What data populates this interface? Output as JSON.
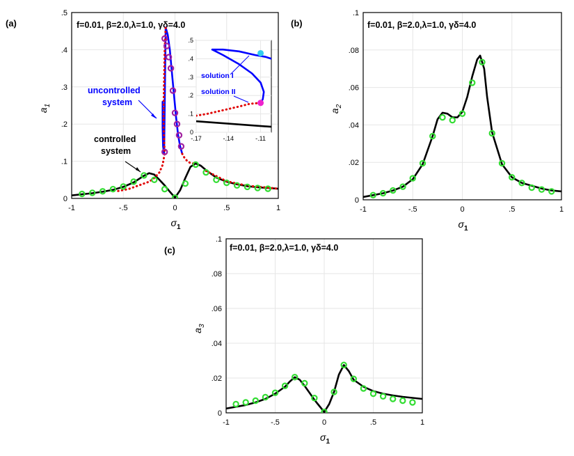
{
  "chart_data": [
    {
      "id": "a",
      "panel_label": "(a)",
      "type": "line",
      "header": "f=0.01, β=2.0,λ=1.0,  γδ=4.0",
      "xlabel": "σ",
      "xlabel_sub": "1",
      "ylabel": "a",
      "ylabel_sub": "1",
      "xlim": [
        -1,
        1
      ],
      "ylim": [
        0,
        0.5
      ],
      "xticks": [
        -1,
        -0.5,
        0,
        0.5,
        1
      ],
      "yticks": [
        0,
        0.1,
        0.2,
        0.3,
        0.4,
        0.5
      ],
      "grid": true,
      "series": [
        {
          "style": "solid",
          "color": "#000000",
          "x": [
            -1,
            -0.9,
            -0.8,
            -0.7,
            -0.6,
            -0.5,
            -0.4,
            -0.3,
            -0.25,
            -0.2,
            -0.15,
            -0.1,
            -0.05,
            0,
            0.05,
            0.1,
            0.15,
            0.2,
            0.25,
            0.3,
            0.4,
            0.5,
            0.6,
            0.7,
            0.8,
            0.9,
            1
          ],
          "y": [
            0.008,
            0.011,
            0.014,
            0.018,
            0.023,
            0.031,
            0.043,
            0.061,
            0.068,
            0.064,
            0.05,
            0.035,
            0.018,
            0.002,
            0.022,
            0.055,
            0.085,
            0.094,
            0.088,
            0.076,
            0.056,
            0.045,
            0.038,
            0.033,
            0.03,
            0.028,
            0.026
          ]
        },
        {
          "style": "solid",
          "color": "#0000ff",
          "x": [
            -0.12,
            -0.12,
            -0.115,
            -0.105,
            -0.09,
            -0.07,
            -0.05,
            -0.03,
            -0.01,
            0.01,
            0.03,
            0.05,
            0.07
          ],
          "y": [
            0.26,
            0.19,
            0.14,
            0.12,
            0.46,
            0.44,
            0.4,
            0.34,
            0.28,
            0.22,
            0.17,
            0.14,
            0.12
          ]
        },
        {
          "style": "dotted",
          "color": "#e00000",
          "x": [
            -0.55,
            -0.45,
            -0.35,
            -0.25,
            -0.2,
            -0.15,
            -0.12,
            -0.1,
            -0.11,
            -0.11,
            -0.105,
            -0.1,
            -0.09
          ],
          "y": [
            0.02,
            0.025,
            0.035,
            0.045,
            0.055,
            0.07,
            0.09,
            0.12,
            0.19,
            0.25,
            0.32,
            0.4,
            0.46
          ]
        },
        {
          "style": "dotted",
          "color": "#e00000",
          "x": [
            0.07,
            0.09,
            0.12,
            0.15,
            0.18
          ],
          "y": [
            0.12,
            0.11,
            0.1,
            0.095,
            0.094
          ]
        },
        {
          "style": "dotted",
          "color": "#e00000",
          "x": [
            0.3,
            0.5,
            0.7,
            0.9,
            1
          ],
          "y": [
            0.074,
            0.046,
            0.034,
            0.029,
            0.026
          ]
        },
        {
          "style": "markers",
          "color": "#33dd33",
          "x": [
            -0.9,
            -0.8,
            -0.7,
            -0.6,
            -0.5,
            -0.4,
            -0.3,
            -0.2,
            -0.1,
            0,
            0.1,
            0.2,
            0.3,
            0.4,
            0.5,
            0.6,
            0.7,
            0.8,
            0.9
          ],
          "y": [
            0.012,
            0.015,
            0.019,
            0.025,
            0.032,
            0.045,
            0.062,
            0.05,
            0.025,
            0.002,
            0.04,
            0.091,
            0.07,
            0.05,
            0.042,
            0.035,
            0.031,
            0.028,
            0.026
          ]
        },
        {
          "style": "markers",
          "color": "#a020a0",
          "x": [
            -0.1,
            -0.08,
            -0.06,
            -0.04,
            -0.02,
            0,
            0.02,
            0.04,
            0.06,
            -0.1
          ],
          "y": [
            0.43,
            0.41,
            0.38,
            0.35,
            0.29,
            0.23,
            0.2,
            0.17,
            0.14,
            0.125
          ]
        }
      ],
      "annotations": [
        {
          "text": "uncontrolled",
          "color": "#0000ff"
        },
        {
          "text": "system",
          "color": "#0000ff"
        },
        {
          "text": "controlled",
          "color": "#000000"
        },
        {
          "text": "system",
          "color": "#000000"
        }
      ],
      "inset": {
        "xlim": [
          -0.17,
          -0.1
        ],
        "ylim": [
          0,
          0.5
        ],
        "xticks": [
          -0.17,
          -0.14,
          -0.11
        ],
        "yticks": [
          0,
          0.1,
          0.2,
          0.3,
          0.4,
          0.5
        ],
        "series": [
          {
            "style": "solid",
            "color": "#0000ff",
            "x": [
              -0.155,
              -0.145,
              -0.13,
              -0.115,
              -0.105,
              -0.1
            ],
            "y": [
              0.45,
              0.45,
              0.44,
              0.42,
              0.41,
              0.4
            ]
          },
          {
            "style": "solid",
            "color": "#0000ff",
            "x": [
              -0.155,
              -0.145,
              -0.13,
              -0.118,
              -0.11,
              -0.107,
              -0.108,
              -0.11
            ],
            "y": [
              0.45,
              0.42,
              0.37,
              0.32,
              0.27,
              0.22,
              0.18,
              0.16
            ]
          },
          {
            "style": "dotted",
            "color": "#e00000",
            "x": [
              -0.17,
              -0.16,
              -0.145,
              -0.13,
              -0.12,
              -0.11
            ],
            "y": [
              0.09,
              0.1,
              0.12,
              0.14,
              0.155,
              0.16
            ]
          },
          {
            "style": "solid",
            "color": "#000000",
            "x": [
              -0.17,
              -0.1
            ],
            "y": [
              0.06,
              0.03
            ]
          }
        ],
        "points": [
          {
            "name": "solution I",
            "x": -0.11,
            "y": 0.43,
            "color": "#33ccee"
          },
          {
            "name": "solution II",
            "x": -0.11,
            "y": 0.16,
            "color": "#ee22cc"
          }
        ],
        "labels": [
          {
            "text": "solution I",
            "color": "#0000ff"
          },
          {
            "text": "solution II",
            "color": "#0000ff"
          }
        ]
      }
    },
    {
      "id": "b",
      "panel_label": "(b)",
      "type": "line",
      "header": "f=0.01, β=2.0,λ=1.0,  γδ=4.0",
      "xlabel": "σ",
      "xlabel_sub": "1",
      "ylabel": "a",
      "ylabel_sub": "2",
      "xlim": [
        -1,
        1
      ],
      "ylim": [
        0,
        0.1
      ],
      "xticks": [
        -1,
        -0.5,
        0,
        0.5,
        1
      ],
      "yticks": [
        0,
        0.02,
        0.04,
        0.06,
        0.08,
        0.1
      ],
      "grid": true,
      "series": [
        {
          "style": "solid",
          "color": "#000000",
          "x": [
            -1,
            -0.9,
            -0.8,
            -0.7,
            -0.6,
            -0.5,
            -0.4,
            -0.3,
            -0.25,
            -0.2,
            -0.15,
            -0.1,
            -0.05,
            0,
            0.05,
            0.1,
            0.15,
            0.18,
            0.22,
            0.25,
            0.3,
            0.4,
            0.5,
            0.6,
            0.7,
            0.8,
            0.9,
            1
          ],
          "y": [
            0.0015,
            0.0025,
            0.0035,
            0.005,
            0.007,
            0.011,
            0.019,
            0.034,
            0.043,
            0.0465,
            0.046,
            0.044,
            0.044,
            0.047,
            0.055,
            0.066,
            0.075,
            0.077,
            0.07,
            0.055,
            0.036,
            0.019,
            0.012,
            0.009,
            0.0075,
            0.006,
            0.005,
            0.0045
          ]
        },
        {
          "style": "markers",
          "color": "#33dd33",
          "x": [
            -0.9,
            -0.8,
            -0.7,
            -0.6,
            -0.5,
            -0.4,
            -0.3,
            -0.2,
            -0.1,
            0,
            0.1,
            0.2,
            0.3,
            0.4,
            0.5,
            0.6,
            0.7,
            0.8,
            0.9
          ],
          "y": [
            0.0025,
            0.0035,
            0.005,
            0.007,
            0.0115,
            0.0195,
            0.034,
            0.044,
            0.0425,
            0.046,
            0.0625,
            0.0735,
            0.0355,
            0.0195,
            0.012,
            0.009,
            0.0065,
            0.0055,
            0.0045
          ]
        }
      ]
    },
    {
      "id": "c",
      "panel_label": "(c)",
      "type": "line",
      "header": "f=0.01, β=2.0,λ=1.0,  γδ=4.0",
      "xlabel": "σ",
      "xlabel_sub": "1",
      "ylabel": "a",
      "ylabel_sub": "3",
      "xlim": [
        -1,
        1
      ],
      "ylim": [
        0,
        0.1
      ],
      "xticks": [
        -1,
        -0.5,
        0,
        0.5,
        1
      ],
      "yticks": [
        0,
        0.02,
        0.04,
        0.06,
        0.08,
        0.1
      ],
      "grid": true,
      "series": [
        {
          "style": "solid",
          "color": "#000000",
          "x": [
            -1,
            -0.9,
            -0.8,
            -0.7,
            -0.6,
            -0.5,
            -0.4,
            -0.35,
            -0.3,
            -0.25,
            -0.2,
            -0.15,
            -0.1,
            -0.05,
            0,
            0.05,
            0.1,
            0.15,
            0.2,
            0.25,
            0.3,
            0.4,
            0.5,
            0.6,
            0.7,
            0.8,
            0.9,
            1
          ],
          "y": [
            0.0025,
            0.0035,
            0.0045,
            0.006,
            0.008,
            0.011,
            0.015,
            0.018,
            0.0205,
            0.019,
            0.0155,
            0.0115,
            0.0075,
            0.004,
            0.0005,
            0.005,
            0.012,
            0.022,
            0.0275,
            0.024,
            0.019,
            0.015,
            0.0125,
            0.011,
            0.01,
            0.0092,
            0.0086,
            0.008
          ]
        },
        {
          "style": "markers",
          "color": "#33dd33",
          "x": [
            -0.9,
            -0.8,
            -0.7,
            -0.6,
            -0.5,
            -0.4,
            -0.3,
            -0.2,
            -0.1,
            0,
            0.1,
            0.2,
            0.3,
            0.4,
            0.5,
            0.6,
            0.7,
            0.8,
            0.9
          ],
          "y": [
            0.005,
            0.006,
            0.007,
            0.009,
            0.0115,
            0.0155,
            0.0205,
            0.017,
            0.0085,
            0.0005,
            0.012,
            0.0275,
            0.0195,
            0.014,
            0.011,
            0.0095,
            0.008,
            0.007,
            0.006
          ]
        }
      ]
    }
  ]
}
